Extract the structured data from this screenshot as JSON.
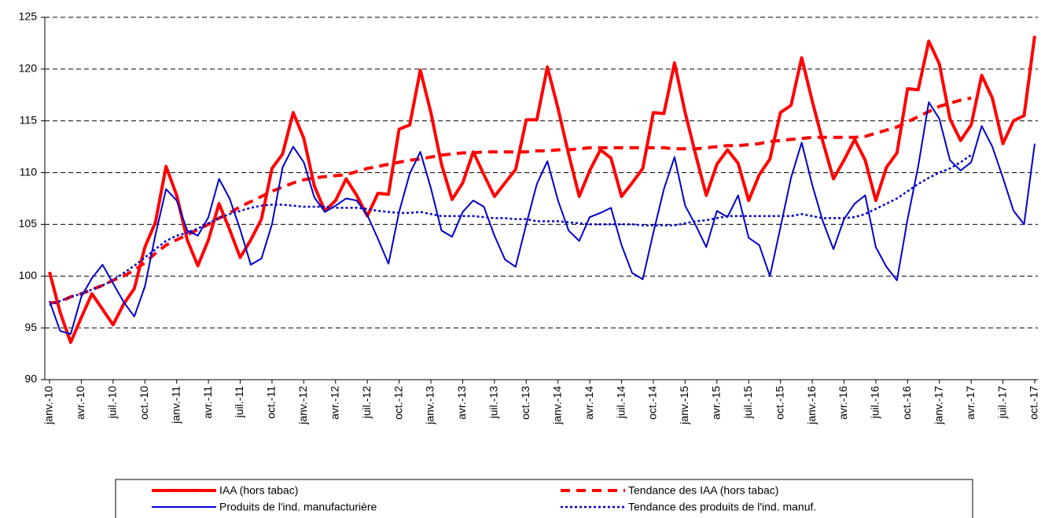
{
  "chart_data": {
    "type": "line",
    "categories": [
      "janv.-10",
      null,
      null,
      "avr.-10",
      null,
      null,
      "juil.-10",
      null,
      null,
      "oct.-10",
      null,
      null,
      "janv.-11",
      null,
      null,
      "avr.-11",
      null,
      null,
      "juil.-11",
      null,
      null,
      "oct.-11",
      null,
      null,
      "janv.-12",
      null,
      null,
      "avr.-12",
      null,
      null,
      "juil.-12",
      null,
      null,
      "oct.-12",
      null,
      null,
      "janv.-13",
      null,
      null,
      "avr.-13",
      null,
      null,
      "juil.-13",
      null,
      null,
      "oct.-13",
      null,
      null,
      "janv.-14",
      null,
      null,
      "avr.-14",
      null,
      null,
      "juil.-14",
      null,
      null,
      "oct.-14",
      null,
      null,
      "janv.-15",
      null,
      null,
      "avr.-15",
      null,
      null,
      "juil.-15",
      null,
      null,
      "oct.-15",
      null,
      null,
      "janv.-16",
      null,
      null,
      "avr.-16",
      null,
      null,
      "juil.-16",
      null,
      null,
      "oct.-16",
      null,
      null,
      "janv.-17",
      null,
      null,
      "avr.-17",
      null,
      null,
      "juil.-17",
      null,
      null,
      "oct.-17"
    ],
    "series": [
      {
        "name": "IAA (hors tabac)",
        "color": "#ff0000",
        "style": "solid",
        "width": 4,
        "values": [
          100.4,
          96.5,
          93.6,
          96,
          98.3,
          96.8,
          95.3,
          97.3,
          98.8,
          102.8,
          105.2,
          110.6,
          107.8,
          103.5,
          101,
          103.5,
          107,
          104.5,
          101.8,
          103.5,
          105.5,
          110.4,
          111.8,
          115.8,
          113.3,
          108.7,
          106.3,
          107.3,
          109.4,
          107.8,
          105.8,
          108,
          107.9,
          114.2,
          114.6,
          119.9,
          115.8,
          110.8,
          107.4,
          109,
          112,
          109.8,
          107.7,
          109,
          110.3,
          115.1,
          115.1,
          120.2,
          116.2,
          111.8,
          107.7,
          110.2,
          112.2,
          111.4,
          107.7,
          109,
          110.4,
          115.8,
          115.7,
          120.6,
          115.8,
          111.7,
          107.8,
          110.8,
          112.2,
          110.9,
          107.3,
          109.8,
          111.3,
          115.8,
          116.5,
          121.1,
          116.9,
          113,
          109.4,
          111.2,
          113.2,
          111.2,
          107.3,
          110.5,
          111.9,
          118.1,
          118,
          122.7,
          120.5,
          115.2,
          113.1,
          114.6,
          119.4,
          117.2,
          112.8,
          115,
          115.5,
          123.2
        ]
      },
      {
        "name": "Tendance des IAA (hors tabac)",
        "color": "#ff0000",
        "style": "dashed",
        "width": 4,
        "values": [
          97.4,
          97.5,
          98,
          98.3,
          98.7,
          99.1,
          99.6,
          100,
          100.6,
          101.3,
          102.2,
          103,
          103.5,
          104,
          104.5,
          105,
          105.6,
          106.1,
          106.7,
          107.2,
          107.7,
          108.2,
          108.6,
          109,
          109.3,
          109.5,
          109.6,
          109.7,
          109.8,
          110.1,
          110.4,
          110.6,
          110.8,
          111,
          111.2,
          111.3,
          111.5,
          111.7,
          111.8,
          111.9,
          111.9,
          112,
          112,
          112,
          112,
          112,
          112.1,
          112.1,
          112.2,
          112.2,
          112.3,
          112.4,
          112.4,
          112.4,
          112.4,
          112.4,
          112.4,
          112.4,
          112.4,
          112.3,
          112.3,
          112.3,
          112.4,
          112.5,
          112.6,
          112.6,
          112.7,
          112.8,
          113,
          113.1,
          113.2,
          113.3,
          113.4,
          113.4,
          113.4,
          113.4,
          113.4,
          113.5,
          113.8,
          114.1,
          114.4,
          114.9,
          115.4,
          115.9,
          116.4,
          116.7,
          117,
          117.2,
          null,
          null,
          null,
          null,
          null,
          null
        ]
      },
      {
        "name": "Produits de l'ind. manufacturière",
        "color": "#0000cc",
        "style": "solid",
        "width": 2,
        "values": [
          97.6,
          94.7,
          94.4,
          98,
          99.8,
          101.1,
          99.3,
          97.5,
          96.1,
          99,
          104,
          108.4,
          107.3,
          104.4,
          103.9,
          105.7,
          109.4,
          107.5,
          104.5,
          101.1,
          101.7,
          105,
          110.5,
          112.5,
          111,
          107.6,
          106.2,
          106.8,
          107.5,
          107.3,
          105.9,
          103.6,
          101.2,
          106.2,
          109.9,
          112,
          108.5,
          104.4,
          103.8,
          106.2,
          107.3,
          106.7,
          103.9,
          101.6,
          100.9,
          105,
          108.9,
          111.1,
          107.3,
          104.4,
          103.4,
          105.7,
          106.1,
          106.6,
          103,
          100.3,
          99.7,
          104.2,
          108.4,
          111.5,
          106.8,
          104.9,
          102.8,
          106.3,
          105.7,
          107.8,
          103.7,
          103,
          100,
          104.7,
          109.5,
          112.9,
          108.8,
          105.3,
          102.6,
          105.5,
          107,
          107.8,
          102.8,
          100.9,
          99.6,
          105.5,
          110.6,
          116.8,
          115.2,
          111.2,
          110.2,
          111,
          114.5,
          112.5,
          109.5,
          106.3,
          105,
          112.8
        ]
      },
      {
        "name": "Tendance des produits de l'ind. manuf.",
        "color": "#0000cc",
        "style": "dotted",
        "width": 2.5,
        "values": [
          97.2,
          97.6,
          98,
          98.3,
          98.7,
          99.1,
          99.6,
          100.3,
          101,
          101.8,
          102.6,
          103.4,
          103.9,
          104.2,
          104.6,
          105.1,
          105.6,
          106,
          106.3,
          106.6,
          106.8,
          106.9,
          106.9,
          106.8,
          106.7,
          106.7,
          106.7,
          106.6,
          106.6,
          106.6,
          106.5,
          106.3,
          106.2,
          106.1,
          106.1,
          106.2,
          106,
          105.8,
          105.8,
          105.8,
          105.8,
          105.7,
          105.6,
          105.6,
          105.5,
          105.5,
          105.3,
          105.3,
          105.3,
          105.2,
          105.1,
          105,
          105,
          105,
          105,
          105,
          104.9,
          104.9,
          104.9,
          104.9,
          105.1,
          105.3,
          105.4,
          105.6,
          105.8,
          105.8,
          105.8,
          105.8,
          105.8,
          105.8,
          105.8,
          106,
          105.8,
          105.6,
          105.6,
          105.6,
          105.7,
          106,
          106.5,
          107,
          107.5,
          108.2,
          108.9,
          109.5,
          110,
          110.4,
          111,
          111.7,
          null,
          null,
          null,
          null,
          null,
          null
        ]
      }
    ],
    "ylim": [
      90,
      125
    ],
    "yticks": [
      90,
      95,
      100,
      105,
      110,
      115,
      120,
      125
    ],
    "grid": true
  }
}
